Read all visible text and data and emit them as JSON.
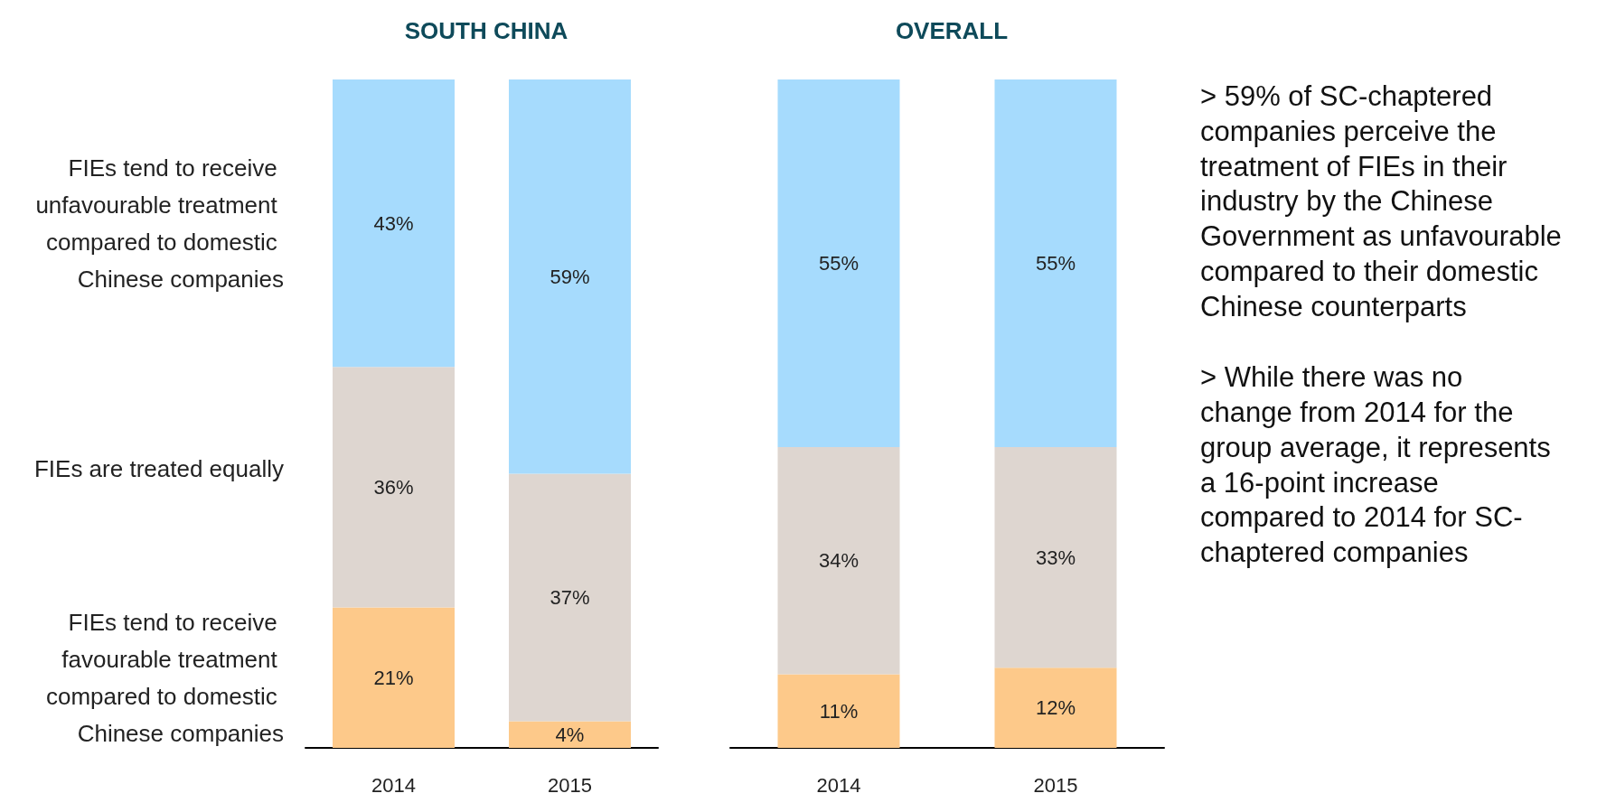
{
  "chart_data": [
    {
      "type": "bar",
      "title": "SOUTH CHINA",
      "categories": [
        "2014",
        "2015"
      ],
      "stacked": true,
      "legend": "left",
      "series": [
        {
          "name": "FIEs tend to receive favourable treatment compared to domestic Chinese companies",
          "color": "#fdc98a",
          "values": [
            21,
            4
          ],
          "value_labels": [
            "21%",
            "4%"
          ]
        },
        {
          "name": "FIEs are treated equally",
          "color": "#ded6d0",
          "values": [
            36,
            37
          ],
          "value_labels": [
            "36%",
            "37%"
          ]
        },
        {
          "name": "FIEs tend to receive unfavourable treatment compared to domestic Chinese companies",
          "color": "#a6dbfd",
          "values": [
            43,
            59
          ],
          "value_labels": [
            "43%",
            "59%"
          ]
        }
      ]
    },
    {
      "type": "bar",
      "title": "OVERALL",
      "categories": [
        "2014",
        "2015"
      ],
      "stacked": true,
      "series": [
        {
          "color": "#fdc98a",
          "values": [
            11,
            12
          ],
          "value_labels": [
            "11%",
            "12%"
          ]
        },
        {
          "color": "#ded6d0",
          "values": [
            34,
            33
          ],
          "value_labels": [
            "34%",
            "33%"
          ]
        },
        {
          "color": "#a6dbfd",
          "values": [
            55,
            55
          ],
          "value_labels": [
            "55%",
            "55%"
          ]
        }
      ],
      "annotations": [
        "> 59% of SC-chaptered companies perceive the treatment of FIEs in their industry by the Chinese Government as unfavourable compared to their domestic Chinese counterparts",
        "> While there was no change from 2014 for the group average, it represents a 16-point increase compared to 2014 for SC-chaptered companies"
      ]
    }
  ]
}
